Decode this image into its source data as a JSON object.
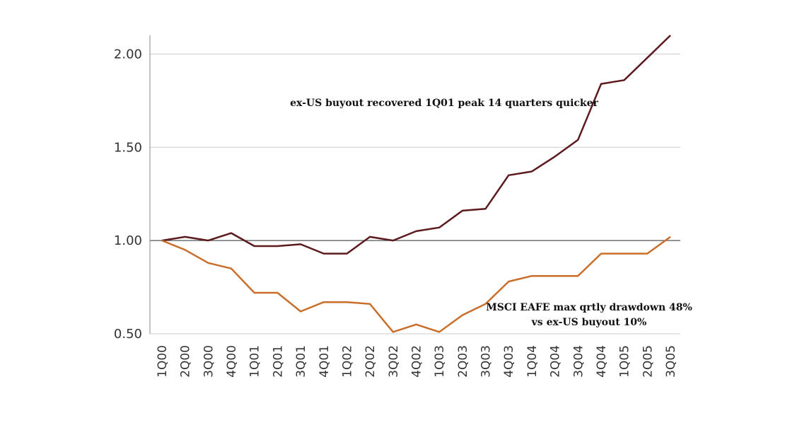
{
  "chart_data": {
    "type": "line",
    "title": "",
    "xlabel": "",
    "ylabel": "",
    "categories": [
      "1Q00",
      "2Q00",
      "3Q00",
      "4Q00",
      "1Q01",
      "2Q01",
      "3Q01",
      "4Q01",
      "1Q02",
      "2Q02",
      "3Q02",
      "4Q02",
      "1Q03",
      "2Q03",
      "3Q03",
      "4Q03",
      "1Q04",
      "2Q04",
      "3Q04",
      "4Q04",
      "1Q05",
      "2Q05",
      "3Q05"
    ],
    "ylim": [
      0.5,
      2.1
    ],
    "yticks": [
      "0.50",
      "1.00",
      "1.50",
      "2.00"
    ],
    "ytick_values": [
      0.5,
      1.0,
      1.5,
      2.0
    ],
    "grid": true,
    "series": [
      {
        "color": "#5c1a1e",
        "values": [
          1.0,
          1.02,
          1.0,
          1.04,
          0.97,
          0.97,
          0.98,
          0.93,
          0.93,
          1.02,
          1.0,
          1.05,
          1.07,
          1.16,
          1.17,
          1.35,
          1.37,
          1.45,
          1.54,
          1.84,
          1.86,
          1.98,
          2.1
        ]
      },
      {
        "color": "#c96f2b",
        "values": [
          1.0,
          0.95,
          0.88,
          0.85,
          0.72,
          0.72,
          0.62,
          0.67,
          0.67,
          0.66,
          0.51,
          0.55,
          0.51,
          0.6,
          0.66,
          0.78,
          0.81,
          0.81,
          0.81,
          0.93,
          0.93,
          0.93,
          1.02
        ]
      }
    ],
    "annotations": [
      {
        "text": "ex-US buyout recovered 1Q01 peak 14 quarters quicker"
      },
      {
        "text": "MSCI EAFE max qrtly drawdown 48%"
      },
      {
        "text": "vs ex-US buyout 10%"
      }
    ]
  }
}
